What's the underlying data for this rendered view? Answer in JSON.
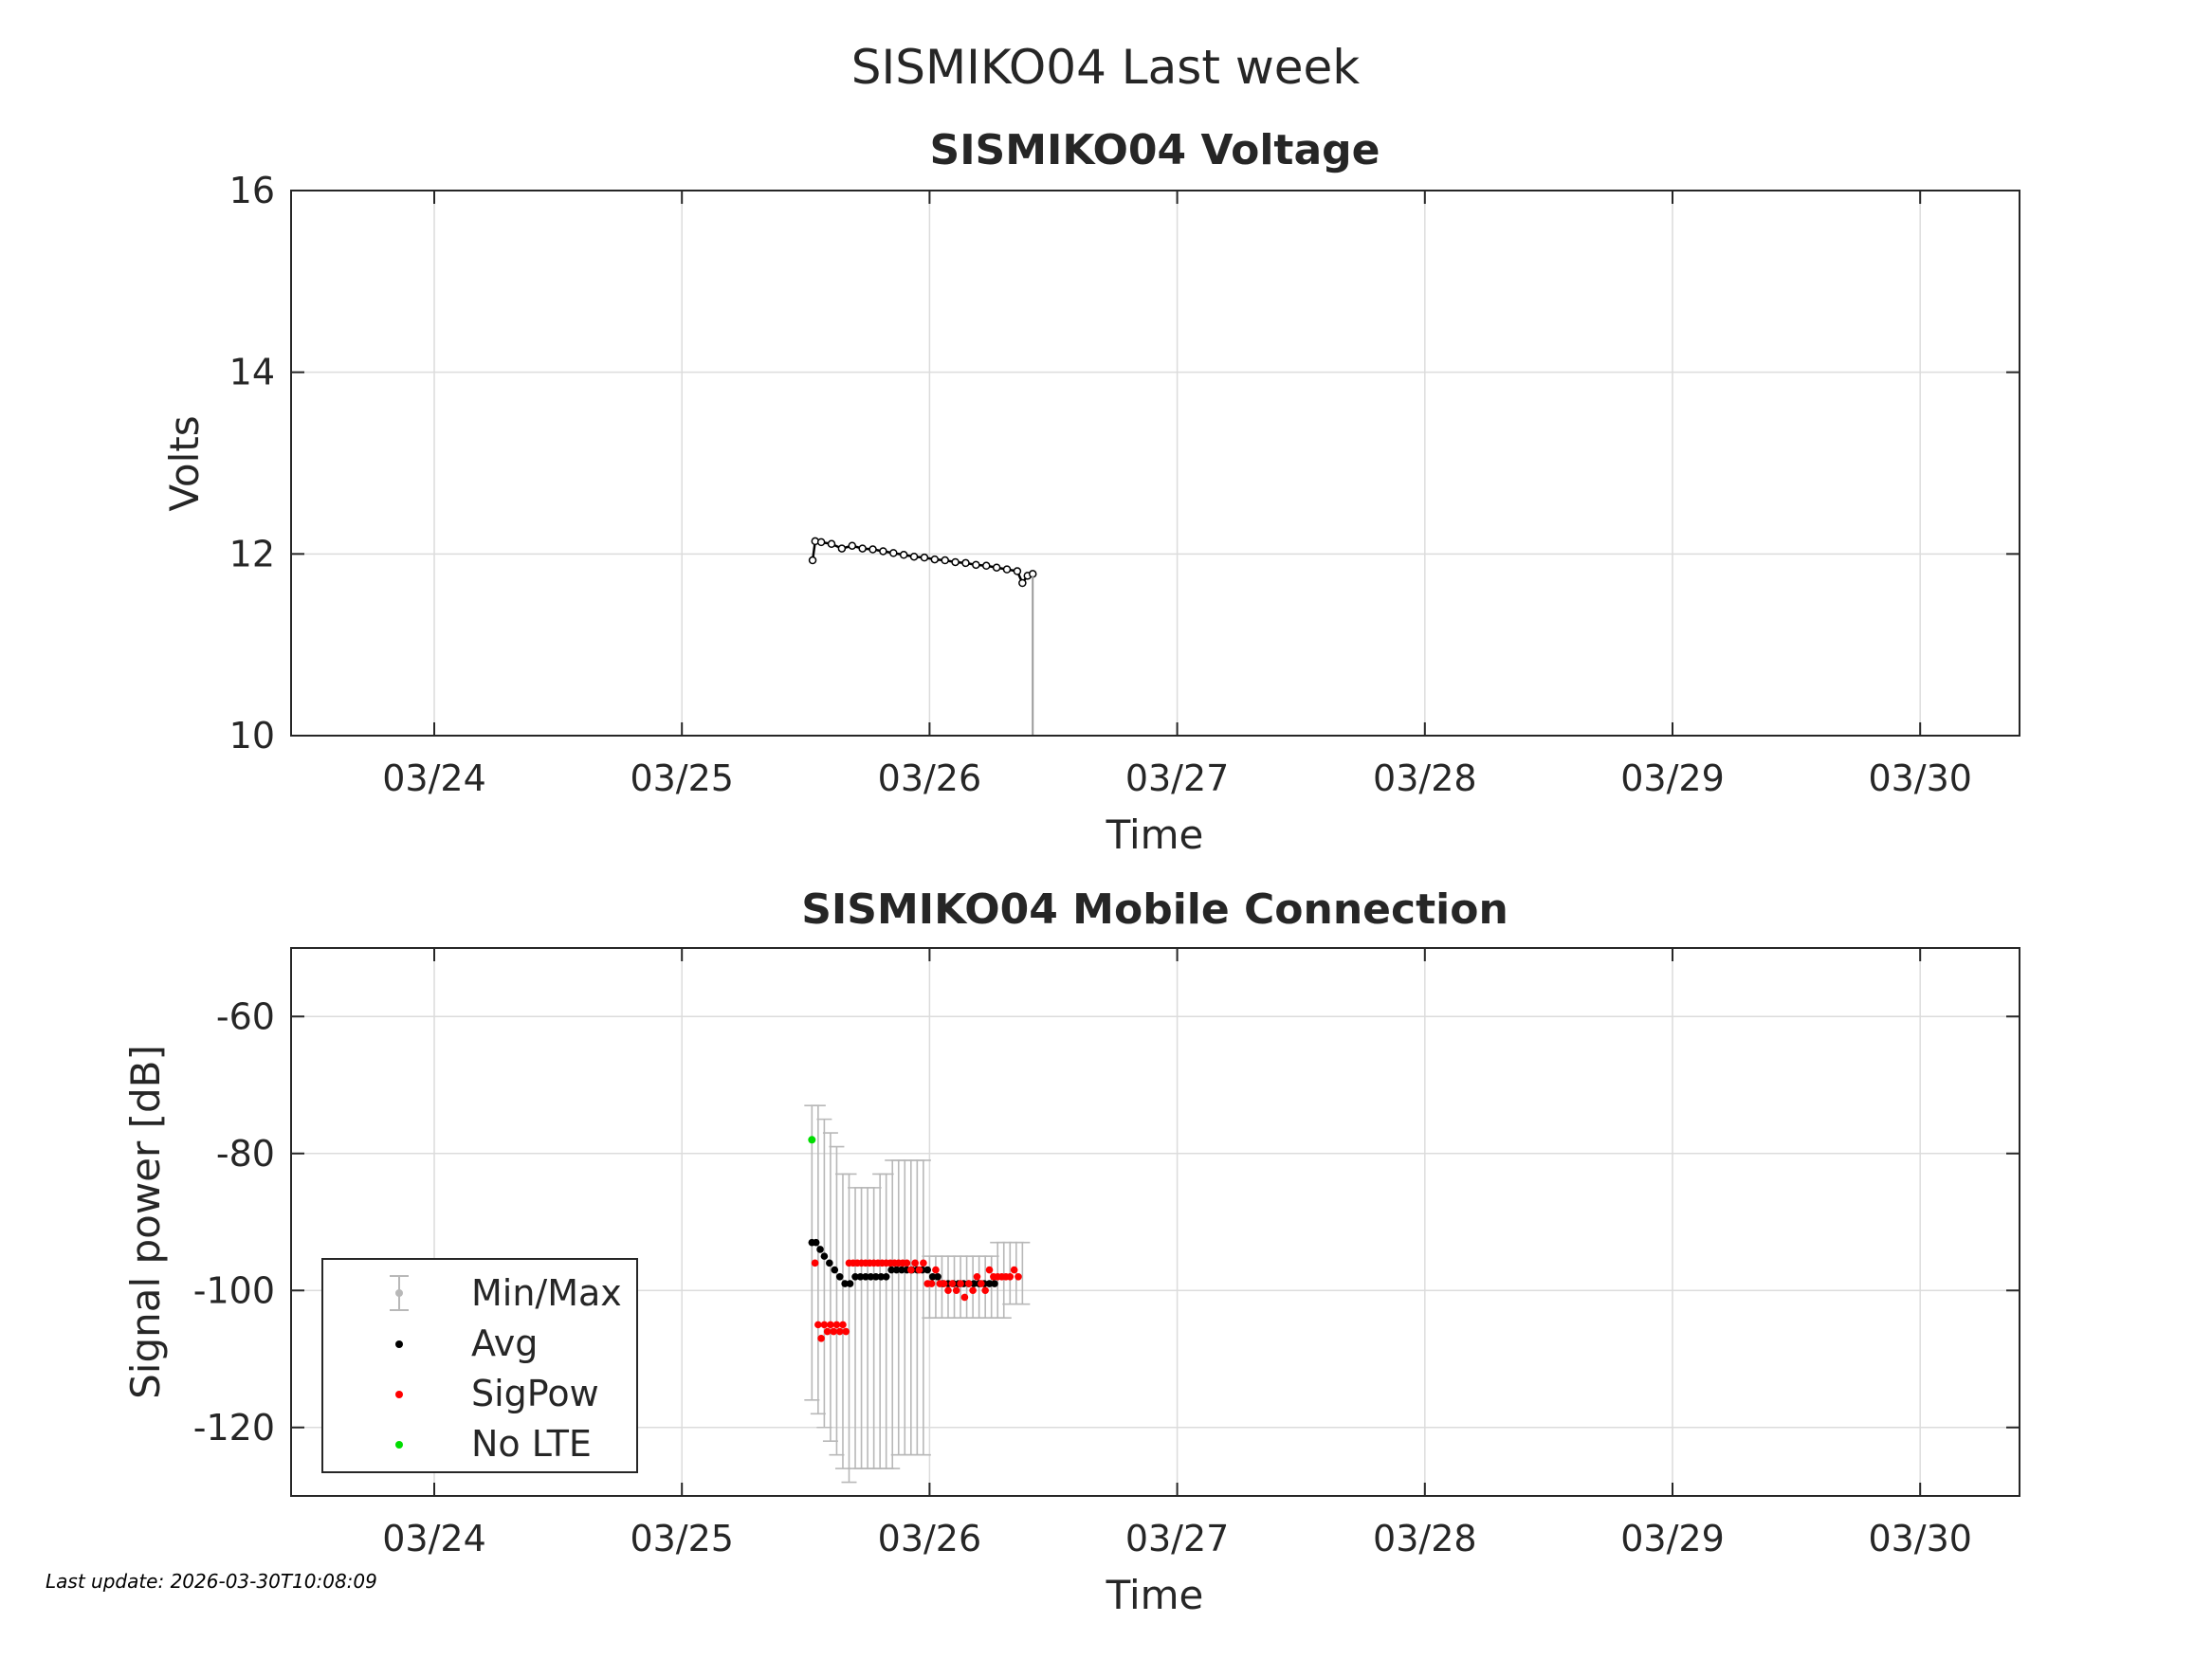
{
  "figure_title": "SISMIKO04 Last week",
  "footer": "Last update: 2026-03-30T10:08:09",
  "colors": {
    "axis": "#262626",
    "grid": "#dcdcdc",
    "errorbar": "#b8b8b8",
    "avg": "#000000",
    "sigpow": "#ff0000",
    "nolte": "#00dd00",
    "voltage_line": "#000000"
  },
  "chart_data": [
    {
      "type": "line",
      "title": "SISMIKO04 Voltage",
      "xlabel": "Time",
      "ylabel": "Volts",
      "x_unit": "days (March 2026)",
      "xlim": [
        "03/23 10:00",
        "03/30 10:00"
      ],
      "x_ticks": [
        "03/24",
        "03/25",
        "03/26",
        "03/27",
        "03/28",
        "03/29",
        "03/30"
      ],
      "ylim": [
        10,
        16
      ],
      "y_ticks": [
        "10",
        "12",
        "14",
        "16"
      ],
      "grid": true,
      "series": [
        {
          "x": [
            "03/25 12:40",
            "03/25 12:55",
            "03/25 13:30",
            "03/25 14:30",
            "03/25 15:30",
            "03/25 16:30",
            "03/25 17:30",
            "03/25 18:30",
            "03/25 19:30",
            "03/25 20:30",
            "03/25 21:30",
            "03/25 22:30",
            "03/25 23:30",
            "03/26 00:30",
            "03/26 01:30",
            "03/26 02:30",
            "03/26 03:30",
            "03/26 04:30",
            "03/26 05:30",
            "03/26 06:30",
            "03/26 07:30",
            "03/26 08:30",
            "03/26 09:00",
            "03/26 09:30",
            "03/26 10:00"
          ],
          "y": [
            11.93,
            12.14,
            12.13,
            12.11,
            12.06,
            12.09,
            12.06,
            12.05,
            12.03,
            12.01,
            11.99,
            11.97,
            11.96,
            11.94,
            11.93,
            11.91,
            11.9,
            11.88,
            11.87,
            11.85,
            11.83,
            11.81,
            11.68,
            11.76,
            11.78
          ]
        }
      ],
      "dropout": {
        "x": "03/26 10:00",
        "y_from": 11.76,
        "y_to": 10
      }
    },
    {
      "type": "scatter",
      "title": "SISMIKO04 Mobile Connection",
      "xlabel": "Time",
      "ylabel": "Signal power [dB]",
      "xlim": [
        "03/23 10:00",
        "03/30 10:00"
      ],
      "x_ticks": [
        "03/24",
        "03/25",
        "03/26",
        "03/27",
        "03/28",
        "03/29",
        "03/30"
      ],
      "ylim": [
        -130,
        -50
      ],
      "y_ticks": [
        "-60",
        "-80",
        "-100",
        "-120"
      ],
      "grid": true,
      "legend": {
        "placement": "bottom-left",
        "entries": [
          "Min/Max",
          "Avg",
          "SigPow",
          "No LTE"
        ]
      },
      "minmax": {
        "x_hours_after_0325_0000": [
          12.6,
          13.2,
          13.8,
          14.4,
          15,
          15.6,
          16.2,
          16.8,
          17.4,
          18,
          18.6,
          19.2,
          19.8,
          20.4,
          21,
          21.6,
          22.2,
          22.8,
          23.4,
          24,
          24.6,
          25.2,
          25.8,
          26.4,
          27,
          27.6,
          28.2,
          28.8,
          29.4,
          30,
          30.6,
          31.2,
          31.8,
          32.4,
          33
        ],
        "min": [
          -116,
          -118,
          -120,
          -122,
          -124,
          -126,
          -128,
          -126,
          -126,
          -126,
          -126,
          -126,
          -126,
          -126,
          -124,
          -124,
          -124,
          -124,
          -124,
          -104,
          -104,
          -104,
          -104,
          -104,
          -104,
          -104,
          -104,
          -104,
          -104,
          -104,
          -104,
          -104,
          -102,
          -102,
          -102
        ],
        "max": [
          -73,
          -73,
          -75,
          -77,
          -79,
          -83,
          -83,
          -85,
          -85,
          -85,
          -85,
          -83,
          -83,
          -81,
          -81,
          -81,
          -81,
          -81,
          -81,
          -95,
          -95,
          -95,
          -95,
          -95,
          -95,
          -95,
          -95,
          -95,
          -95,
          -95,
          -93,
          -93,
          -93,
          -93,
          -93
        ]
      },
      "avg": {
        "x_hours_after_0325_0000": [
          12.6,
          13.0,
          13.4,
          13.8,
          14.3,
          14.8,
          15.3,
          15.8,
          16.3,
          16.8,
          17.3,
          17.8,
          18.3,
          18.8,
          19.3,
          19.8,
          20.3,
          20.8,
          21.3,
          21.8,
          22.3,
          22.8,
          23.3,
          23.8,
          24.3,
          24.8,
          25.3,
          25.8,
          26.3,
          26.8,
          27.3,
          27.8,
          28.3,
          28.8,
          29.3,
          29.8,
          30.3
        ],
        "values": [
          -93,
          -93,
          -94,
          -95,
          -96,
          -97,
          -98,
          -99,
          -99,
          -98,
          -98,
          -98,
          -98,
          -98,
          -98,
          -98,
          -97,
          -97,
          -97,
          -97,
          -97,
          -97,
          -97,
          -97,
          -98,
          -98,
          -99,
          -99,
          -99,
          -99,
          -99,
          -99,
          -99,
          -99,
          -99,
          -99,
          -99
        ]
      },
      "sigpow": {
        "x_hours_after_0325_0000": [
          12.9,
          13.2,
          13.5,
          13.8,
          14.1,
          14.4,
          14.7,
          15.0,
          15.3,
          15.6,
          15.9,
          16.2,
          16.6,
          17.0,
          17.4,
          17.8,
          18.2,
          18.6,
          19.0,
          19.4,
          19.8,
          20.2,
          20.6,
          21.0,
          21.4,
          21.8,
          22.2,
          22.6,
          23.0,
          23.4,
          23.8,
          24.2,
          24.6,
          25.0,
          25.4,
          25.8,
          26.2,
          26.6,
          27.0,
          27.4,
          27.8,
          28.2,
          28.6,
          29.0,
          29.4,
          29.8,
          30.2,
          30.6,
          31.0,
          31.4,
          31.8,
          32.2,
          32.6
        ],
        "values": [
          -96,
          -105,
          -107,
          -105,
          -106,
          -105,
          -106,
          -105,
          -106,
          -105,
          -106,
          -96,
          -96,
          -96,
          -96,
          -96,
          -96,
          -96,
          -96,
          -96,
          -96,
          -96,
          -96,
          -96,
          -96,
          -96,
          -97,
          -96,
          -97,
          -96,
          -99,
          -99,
          -97,
          -99,
          -99,
          -100,
          -99,
          -100,
          -99,
          -101,
          -99,
          -100,
          -98,
          -99,
          -100,
          -97,
          -98,
          -98,
          -98,
          -98,
          -98,
          -97,
          -98
        ]
      },
      "nolte": {
        "x_hours_after_0325_0000": [
          12.6
        ],
        "values": [
          -78
        ]
      }
    }
  ]
}
